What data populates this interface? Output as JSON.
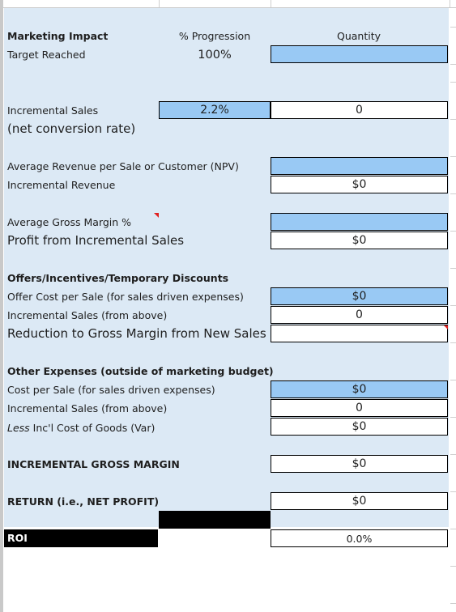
{
  "header": {
    "title": "Marketing Impact",
    "progression_label": "% Progression",
    "quantity_label": "Quantity"
  },
  "target": {
    "label": "Target Reached",
    "progression": "100%"
  },
  "incremental_sales": {
    "label": "Incremental Sales",
    "sublabel": "(net conversion rate)",
    "progression": "2.2%",
    "quantity": "0"
  },
  "revenue": {
    "avg_label": "Average Revenue per Sale or Customer (NPV)",
    "avg_value": "",
    "incr_label": "Incremental Revenue",
    "incr_value": "$0"
  },
  "margin": {
    "avg_label": "Average Gross Margin %",
    "avg_value": "",
    "profit_label": "Profit from Incremental Sales",
    "profit_value": "$0"
  },
  "offers": {
    "title": "Offers/Incentives/Temporary Discounts",
    "cost_label": "Offer Cost per Sale (for sales driven expenses)",
    "cost_value": "$0",
    "sales_label": "Incremental Sales (from above)",
    "sales_value": "0",
    "reduction_label": "Reduction to Gross Margin from New Sales",
    "reduction_value": ""
  },
  "other": {
    "title": "Other Expenses (outside of marketing budget)",
    "cost_label": "Cost per Sale (for sales driven expenses)",
    "cost_value": "$0",
    "sales_label": "Incremental Sales (from above)",
    "sales_value": "0",
    "less_prefix": "Less",
    "cogs_label": " Inc'l Cost of Goods (Var)",
    "cogs_value": "$0"
  },
  "gross_margin": {
    "label": "INCREMENTAL GROSS MARGIN",
    "value": "$0"
  },
  "return": {
    "label": "RETURN (i.e., NET PROFIT)",
    "value": "$0"
  },
  "roi": {
    "label": "ROI",
    "value": "0.0%"
  },
  "colors": {
    "panel": "#dce9f5",
    "input_blue": "#99c9f4",
    "comment_marker": "#e02020"
  }
}
